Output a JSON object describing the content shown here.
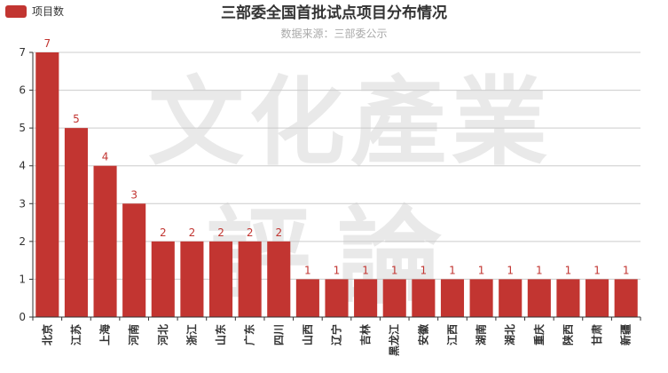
{
  "colors": {
    "bar": "#c23531",
    "axis": "#333333",
    "grid": "#cccccc",
    "text": "#333333",
    "subtitle": "#aaaaaa"
  },
  "watermark": {
    "line1": "文化產業",
    "line2": "評論"
  },
  "chart_data": {
    "type": "bar",
    "title": "三部委全国首批试点项目分布情况",
    "subtitle": "数据来源：三部委公示",
    "xlabel": "",
    "ylabel": "",
    "ylim": [
      0,
      7
    ],
    "yticks": [
      0,
      1,
      2,
      3,
      4,
      5,
      6,
      7
    ],
    "grid": true,
    "legend_position": "top-left",
    "categories": [
      "北京",
      "江苏",
      "上海",
      "河南",
      "河北",
      "浙江",
      "山东",
      "广东",
      "四川",
      "山西",
      "辽宁",
      "吉林",
      "黑龙江",
      "安徽",
      "江西",
      "湖南",
      "湖北",
      "重庆",
      "陕西",
      "甘肃",
      "新疆"
    ],
    "series": [
      {
        "name": "项目数",
        "values": [
          7,
          5,
          4,
          3,
          2,
          2,
          2,
          2,
          2,
          1,
          1,
          1,
          1,
          1,
          1,
          1,
          1,
          1,
          1,
          1,
          1
        ]
      }
    ]
  }
}
